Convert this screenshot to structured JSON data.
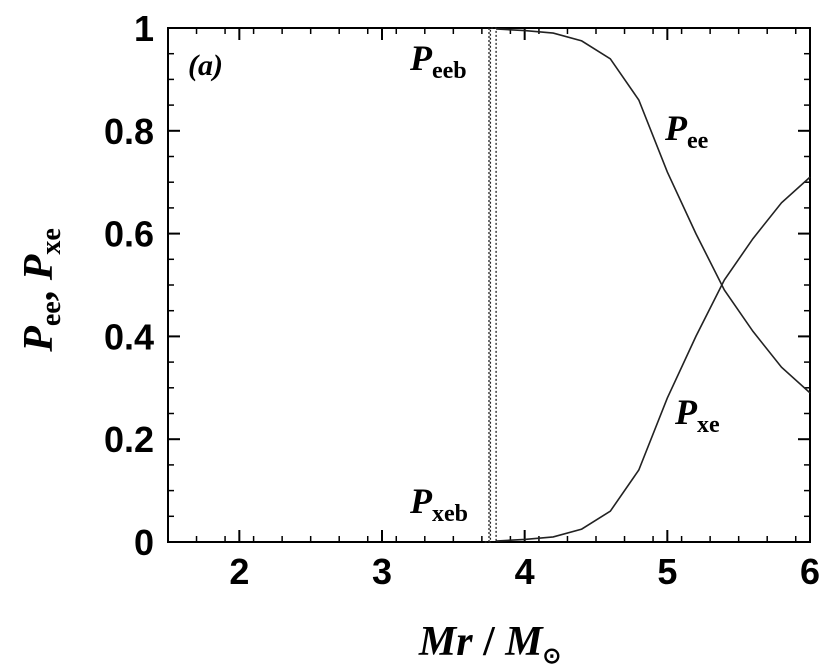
{
  "chart_data": {
    "type": "line",
    "panel_label": "(a)",
    "xlabel": {
      "main": "Mr",
      "sep": " / ",
      "unit": "M",
      "unit_sub": "⊙"
    },
    "ylabel": {
      "p1": "P",
      "s1": "ee",
      "sep": ", ",
      "p2": "P",
      "s2": "xe"
    },
    "xlim": [
      1.5,
      6
    ],
    "ylim": [
      0,
      1
    ],
    "x_ticks": [
      2,
      3,
      4,
      5,
      6
    ],
    "x_tick_labels": [
      "2",
      "3",
      "4",
      "5",
      "6"
    ],
    "y_ticks": [
      0,
      0.2,
      0.4,
      0.6,
      0.8,
      1
    ],
    "y_tick_labels": [
      "0",
      "0.2",
      "0.4",
      "0.6",
      "0.8",
      "1"
    ],
    "grid": false,
    "series": [
      {
        "name": "Pee",
        "label_main": "P",
        "label_sub": "ee",
        "style": "solid",
        "x": [
          3.8,
          4.0,
          4.2,
          4.4,
          4.6,
          4.8,
          5.0,
          5.2,
          5.4,
          5.6,
          5.8,
          6.0
        ],
        "y": [
          0.998,
          0.995,
          0.99,
          0.975,
          0.94,
          0.86,
          0.72,
          0.6,
          0.49,
          0.41,
          0.34,
          0.29
        ]
      },
      {
        "name": "Pxe",
        "label_main": "P",
        "label_sub": "xe",
        "style": "solid",
        "x": [
          3.8,
          4.0,
          4.2,
          4.4,
          4.6,
          4.8,
          5.0,
          5.2,
          5.4,
          5.6,
          5.8,
          6.0
        ],
        "y": [
          0.002,
          0.005,
          0.01,
          0.025,
          0.06,
          0.14,
          0.28,
          0.4,
          0.51,
          0.59,
          0.66,
          0.71
        ]
      },
      {
        "name": "Peeb",
        "label_main": "P",
        "label_sub": "eeb",
        "style": "dotted",
        "x": [
          3.75,
          3.75,
          3.8,
          3.8
        ],
        "y": [
          0,
          1,
          1,
          0
        ]
      },
      {
        "name": "Pxeb",
        "label_main": "P",
        "label_sub": "xeb",
        "style": "dotted",
        "x": [
          3.72,
          3.76,
          3.76
        ],
        "y": [
          0,
          0,
          1
        ]
      }
    ]
  }
}
